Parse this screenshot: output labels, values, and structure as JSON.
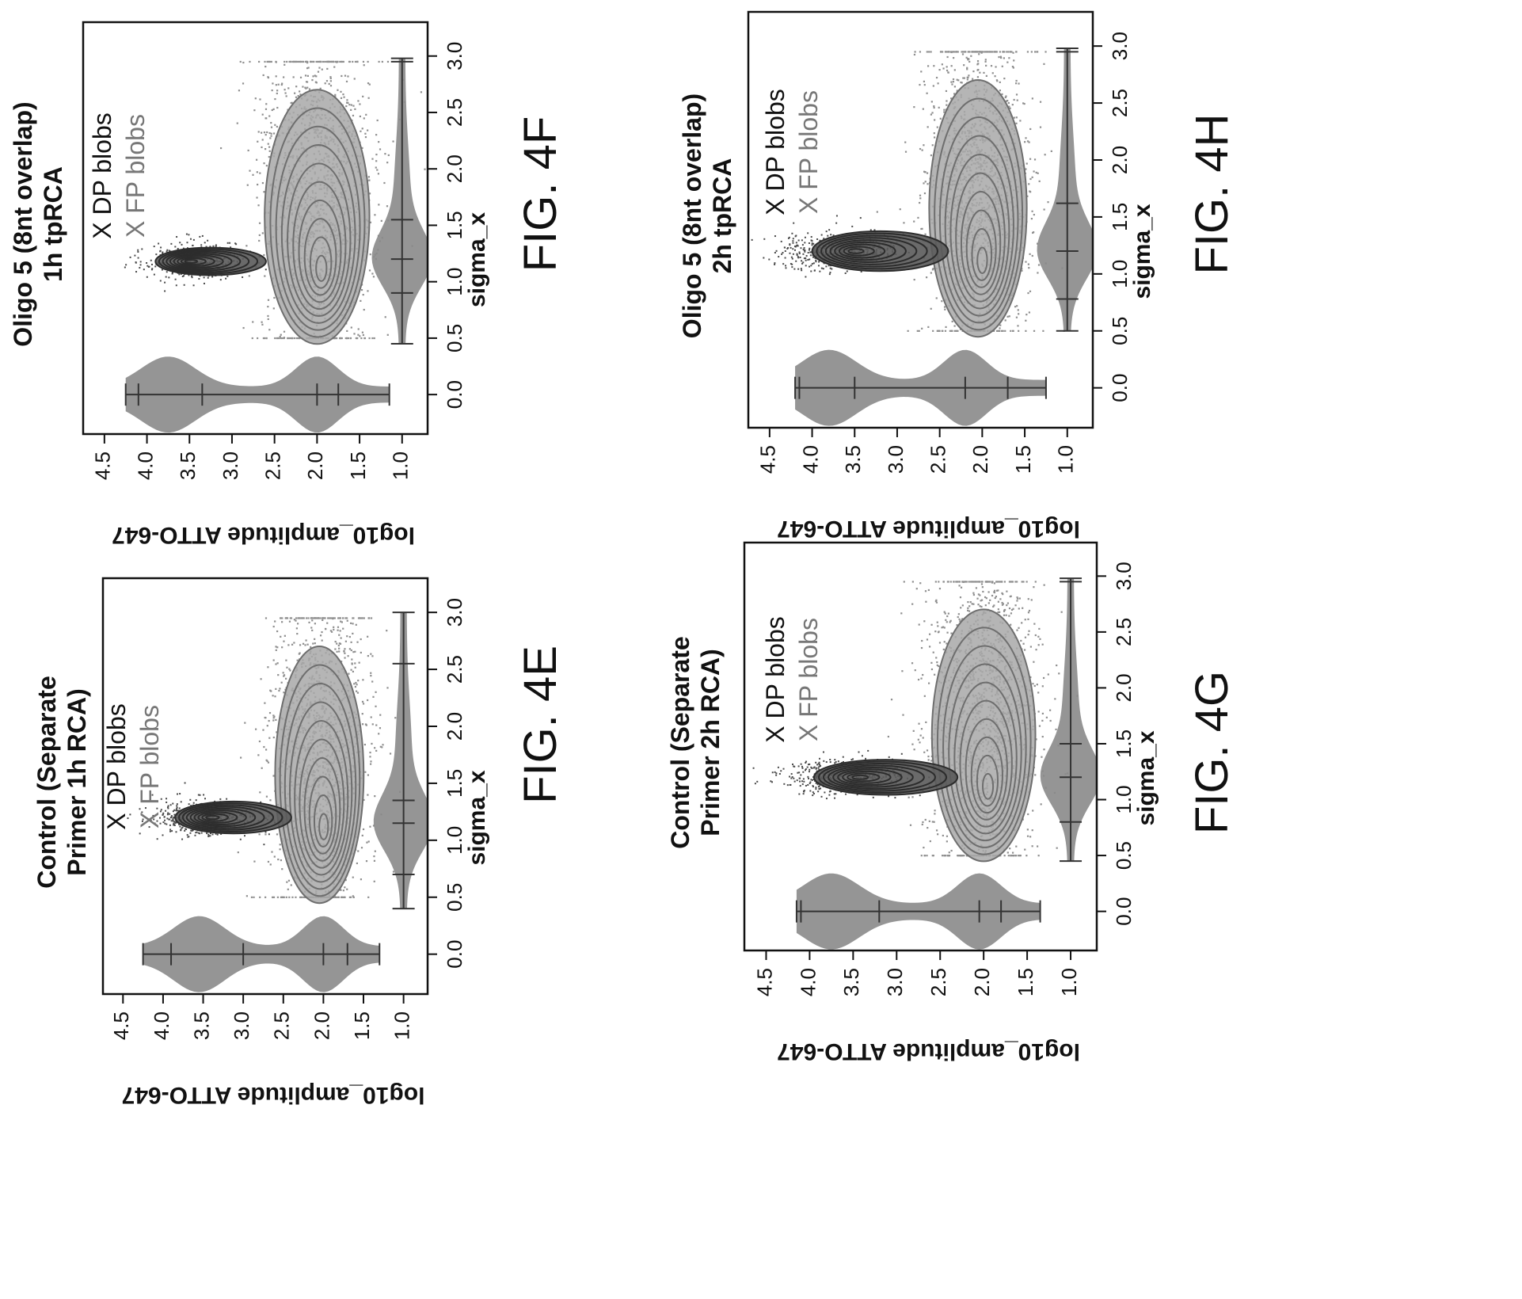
{
  "colors": {
    "fp_fill": "#a8a8a8",
    "fp_contour": "#6e6e6e",
    "dp_fill": "#5a5a5a",
    "dp_contour": "#2c2c2c",
    "scatter": "#8f8f8f",
    "violin": "#8a8a8a",
    "axis": "#111111"
  },
  "chart_data": [
    {
      "id": "4E",
      "type": "scatter",
      "figure_label": "FIG. 4E",
      "title_lines": [
        "Control (Separate",
        "Primer 1h RCA)"
      ],
      "xlabel": "sigma_x",
      "ylabel": "log10_amplitude ATTO-647",
      "xlim": [
        -0.35,
        3.3
      ],
      "ylim": [
        0.7,
        4.75
      ],
      "x_ticks": [
        "0.0",
        "0.5",
        "1.0",
        "1.5",
        "2.0",
        "2.5",
        "3.0"
      ],
      "y_ticks": [
        "1.0",
        "1.5",
        "2.0",
        "2.5",
        "3.0",
        "3.5",
        "4.0",
        "4.5"
      ],
      "legend": [
        "X DP blobs",
        "X FP blobs"
      ],
      "series": [
        {
          "name": "DP blobs",
          "sigma_x_range": [
            1.05,
            1.45
          ],
          "log10_amplitude_range": [
            2.4,
            3.85
          ],
          "peak": [
            1.2,
            3.5
          ]
        },
        {
          "name": "FP blobs",
          "sigma_x_range": [
            0.5,
            2.95
          ],
          "log10_amplitude_range": [
            1.55,
            2.85
          ],
          "peak": [
            1.25,
            2.05
          ]
        }
      ],
      "violin_y": {
        "min": 1.3,
        "q1": 1.7,
        "median": 2.0,
        "mean": 3.0,
        "q3": 3.9,
        "max": 4.25
      },
      "violin_x": {
        "min": 0.4,
        "q1": 0.7,
        "median": 1.15,
        "mean": 1.35,
        "q3": 2.55,
        "max": 3.0
      }
    },
    {
      "id": "4F",
      "type": "scatter",
      "figure_label": "FIG. 4F",
      "title_lines": [
        "Oligo 5 (8nt overlap)",
        "1h tpRCA"
      ],
      "xlabel": "sigma_x",
      "ylabel": "log10_amplitude ATTO-647",
      "xlim": [
        -0.35,
        3.3
      ],
      "ylim": [
        0.7,
        4.75
      ],
      "x_ticks": [
        "0.0",
        "0.5",
        "1.0",
        "1.5",
        "2.0",
        "2.5",
        "3.0"
      ],
      "y_ticks": [
        "1.0",
        "1.5",
        "2.0",
        "2.5",
        "3.0",
        "3.5",
        "4.0",
        "4.5"
      ],
      "legend": [
        "X DP blobs",
        "X FP blobs"
      ],
      "series": [
        {
          "name": "DP blobs",
          "sigma_x_range": [
            1.05,
            1.4
          ],
          "log10_amplitude_range": [
            2.6,
            3.9
          ],
          "peak": [
            1.18,
            3.45
          ]
        },
        {
          "name": "FP blobs",
          "sigma_x_range": [
            0.5,
            2.95
          ],
          "log10_amplitude_range": [
            1.5,
            2.95
          ],
          "peak": [
            1.2,
            2.0
          ]
        }
      ],
      "violin_y": {
        "min": 1.15,
        "q1": 1.75,
        "median": 2.0,
        "mean": 3.35,
        "q3": 4.1,
        "max": 4.25
      },
      "violin_x": {
        "min": 0.45,
        "q1": 0.9,
        "median": 1.2,
        "mean": 1.55,
        "q3": 2.95,
        "max": 2.98
      }
    },
    {
      "id": "4G",
      "type": "scatter",
      "figure_label": "FIG. 4G",
      "title_lines": [
        "Control (Separate",
        "Primer 2h RCA)"
      ],
      "xlabel": "sigma_x",
      "ylabel": "log10_amplitude ATTO-647",
      "xlim": [
        -0.35,
        3.3
      ],
      "ylim": [
        0.7,
        4.75
      ],
      "x_ticks": [
        "0.0",
        "0.5",
        "1.0",
        "1.5",
        "2.0",
        "2.5",
        "3.0"
      ],
      "y_ticks": [
        "1.0",
        "1.5",
        "2.0",
        "2.5",
        "3.0",
        "3.5",
        "4.0",
        "4.5"
      ],
      "legend": [
        "X DP blobs",
        "X FP blobs"
      ],
      "series": [
        {
          "name": "DP blobs",
          "sigma_x_range": [
            1.05,
            1.5
          ],
          "log10_amplitude_range": [
            2.3,
            3.95
          ],
          "peak": [
            1.2,
            3.6
          ]
        },
        {
          "name": "FP blobs",
          "sigma_x_range": [
            0.5,
            2.95
          ],
          "log10_amplitude_range": [
            1.45,
            2.85
          ],
          "peak": [
            1.25,
            2.0
          ]
        }
      ],
      "violin_y": {
        "min": 1.35,
        "q1": 1.8,
        "median": 2.05,
        "mean": 3.2,
        "q3": 4.1,
        "max": 4.15
      },
      "violin_x": {
        "min": 0.45,
        "q1": 0.8,
        "median": 1.2,
        "mean": 1.5,
        "q3": 2.95,
        "max": 2.98
      }
    },
    {
      "id": "4H",
      "type": "scatter",
      "figure_label": "FIG. 4H",
      "title_lines": [
        "Oligo 5 (8nt overlap)",
        "2h tpRCA"
      ],
      "xlabel": "sigma_x",
      "ylabel": "log10_amplitude ATTO-647",
      "xlim": [
        -0.35,
        3.3
      ],
      "ylim": [
        0.7,
        4.75
      ],
      "x_ticks": [
        "0.0",
        "0.5",
        "1.0",
        "1.5",
        "2.0",
        "2.5",
        "3.0"
      ],
      "y_ticks": [
        "1.0",
        "1.5",
        "2.0",
        "2.5",
        "3.0",
        "3.5",
        "4.0",
        "4.5"
      ],
      "legend": [
        "X DP blobs",
        "X FP blobs"
      ],
      "series": [
        {
          "name": "DP blobs",
          "sigma_x_range": [
            1.05,
            1.55
          ],
          "log10_amplitude_range": [
            2.4,
            4.0
          ],
          "peak": [
            1.2,
            3.7
          ]
        },
        {
          "name": "FP blobs",
          "sigma_x_range": [
            0.5,
            2.95
          ],
          "log10_amplitude_range": [
            1.6,
            2.95
          ],
          "peak": [
            1.25,
            2.05
          ]
        }
      ],
      "violin_y": {
        "min": 1.25,
        "q1": 1.7,
        "median": 2.2,
        "mean": 3.5,
        "q3": 4.15,
        "max": 4.2
      },
      "violin_x": {
        "min": 0.5,
        "q1": 0.78,
        "median": 1.2,
        "mean": 1.62,
        "q3": 2.95,
        "max": 2.98
      }
    }
  ]
}
